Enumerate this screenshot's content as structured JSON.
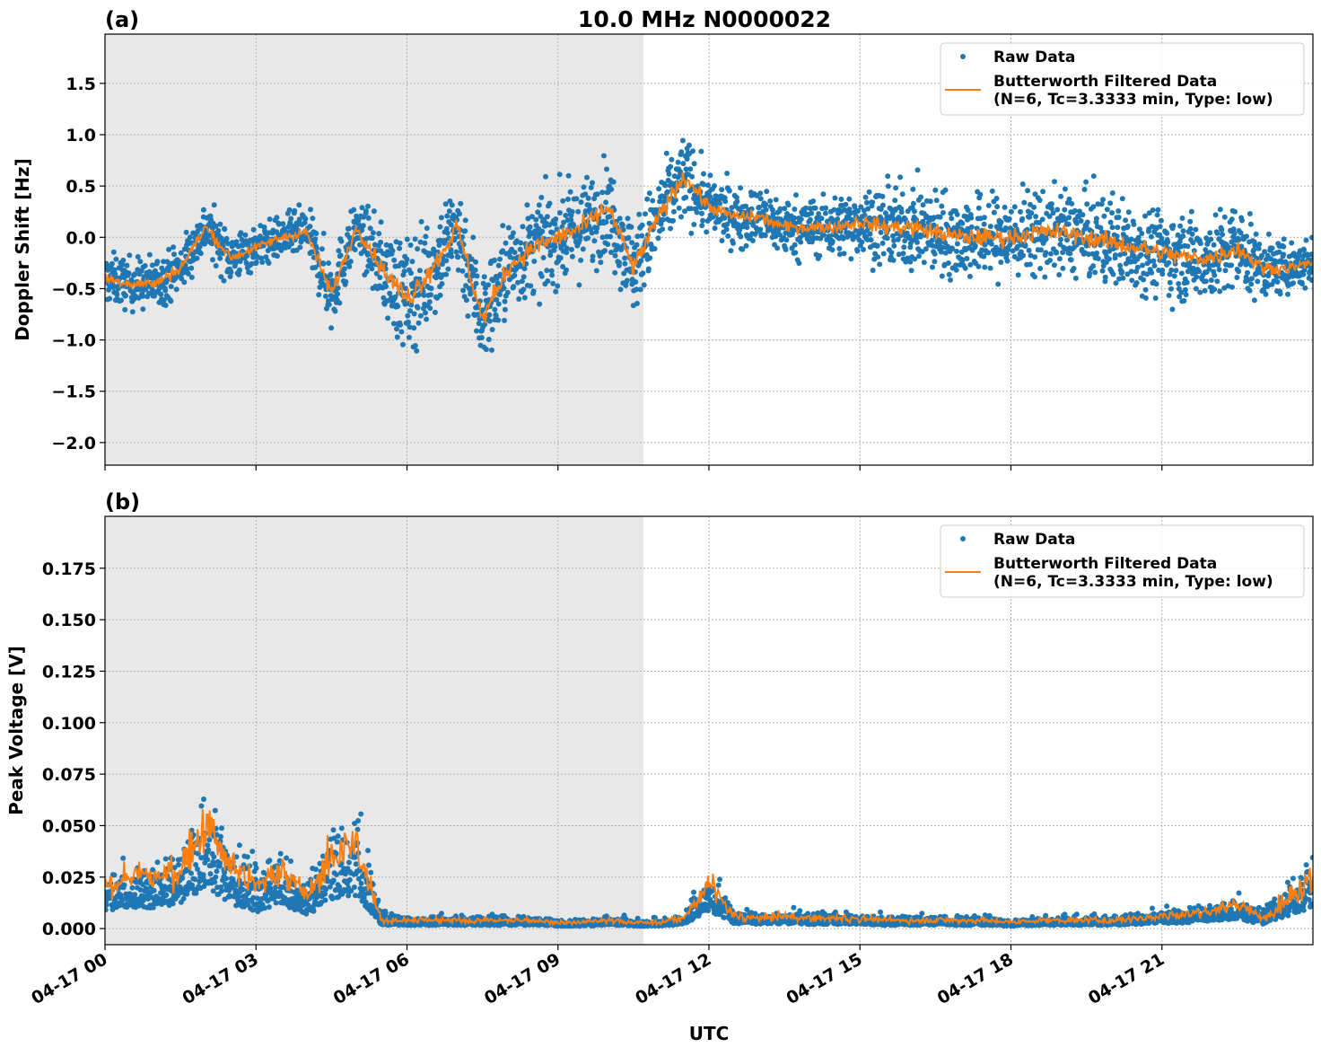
{
  "title": "10.0 MHz N0000022",
  "chart_data": [
    {
      "panel_label": "(a)",
      "type": "scatter",
      "ylabel": "Doppler Shift [Hz]",
      "xlabel": "",
      "xlim_hours": [
        0,
        24
      ],
      "ylim": [
        -2.22,
        1.98
      ],
      "yticks": [
        1.5,
        1.0,
        0.5,
        0.0,
        -0.5,
        -1.0,
        -1.5,
        -2.0
      ],
      "ytick_labels": [
        "1.5",
        "1.0",
        "0.5",
        "0.0",
        "−0.5",
        "−1.0",
        "−1.5",
        "−2.0"
      ],
      "grid": true,
      "shaded_interval_hours": [
        0,
        10.7
      ],
      "legend_placement": "top-right",
      "legend": [
        "Raw Data",
        "Butterworth Filtered Data",
        "(N=6, Tc=3.3333 min, Type: low)"
      ],
      "series_colors": {
        "raw": "#1f77b4",
        "filtered": "#ff7f0e"
      },
      "time_hours": [
        0,
        0.5,
        1,
        1.5,
        2,
        2.5,
        3,
        3.5,
        4,
        4.5,
        5,
        5.5,
        6,
        6.5,
        7,
        7.5,
        8,
        8.5,
        9,
        9.5,
        10,
        10.5,
        11,
        11.5,
        12,
        12.5,
        13,
        13.5,
        14,
        14.5,
        15,
        15.5,
        16,
        16.5,
        17,
        17.5,
        18,
        18.5,
        19,
        19.5,
        20,
        20.5,
        21,
        21.5,
        22,
        22.5,
        23,
        23.5,
        24
      ],
      "filtered": [
        -0.4,
        -0.45,
        -0.45,
        -0.3,
        0.1,
        -0.2,
        -0.1,
        0.0,
        0.05,
        -0.55,
        0.1,
        -0.3,
        -0.6,
        -0.3,
        0.1,
        -0.8,
        -0.3,
        -0.1,
        0.0,
        0.1,
        0.3,
        -0.3,
        0.2,
        0.6,
        0.3,
        0.2,
        0.2,
        0.1,
        0.1,
        0.1,
        0.15,
        0.1,
        0.1,
        0.05,
        0.0,
        0.0,
        0.0,
        0.05,
        0.05,
        0.0,
        -0.05,
        -0.1,
        -0.15,
        -0.2,
        -0.2,
        -0.1,
        -0.3,
        -0.3,
        -0.25
      ],
      "raw_spread": [
        0.3,
        0.3,
        0.3,
        0.3,
        0.3,
        0.3,
        0.25,
        0.25,
        0.3,
        0.45,
        0.3,
        0.5,
        0.7,
        0.6,
        0.6,
        0.6,
        0.55,
        0.55,
        0.55,
        0.55,
        0.55,
        0.55,
        0.5,
        0.5,
        0.35,
        0.35,
        0.35,
        0.35,
        0.35,
        0.35,
        0.4,
        0.45,
        0.5,
        0.5,
        0.5,
        0.5,
        0.5,
        0.5,
        0.5,
        0.5,
        0.55,
        0.5,
        0.5,
        0.5,
        0.5,
        0.55,
        0.35,
        0.3,
        0.3
      ]
    },
    {
      "panel_label": "(b)",
      "type": "scatter",
      "ylabel": "Peak Voltage [V]",
      "xlabel": "UTC",
      "xlim_hours": [
        0,
        24
      ],
      "ylim": [
        -0.0078,
        0.2002
      ],
      "yticks": [
        0.175,
        0.15,
        0.125,
        0.1,
        0.075,
        0.05,
        0.025,
        0.0
      ],
      "ytick_labels": [
        "0.175",
        "0.150",
        "0.125",
        "0.100",
        "0.075",
        "0.050",
        "0.025",
        "0.000"
      ],
      "xticks_hours": [
        0,
        3,
        6,
        9,
        12,
        15,
        18,
        21
      ],
      "xtick_labels": [
        "04-17 00",
        "04-17 03",
        "04-17 06",
        "04-17 09",
        "04-17 12",
        "04-17 15",
        "04-17 18",
        "04-17 21"
      ],
      "grid": true,
      "shaded_interval_hours": [
        0,
        10.7
      ],
      "legend_placement": "top-right",
      "legend": [
        "Raw Data",
        "Butterworth Filtered Data",
        "(N=6, Tc=3.3333 min, Type: low)"
      ],
      "series_colors": {
        "raw": "#1f77b4",
        "filtered": "#ff7f0e"
      },
      "time_hours": [
        0,
        0.5,
        1,
        1.5,
        2,
        2.5,
        3,
        3.5,
        4,
        4.5,
        5,
        5.5,
        6,
        6.5,
        7,
        7.5,
        8,
        8.5,
        9,
        9.5,
        10,
        10.5,
        11,
        11.5,
        12,
        12.5,
        13,
        13.5,
        14,
        14.5,
        15,
        15.5,
        16,
        16.5,
        17,
        17.5,
        18,
        18.5,
        19,
        19.5,
        20,
        20.5,
        21,
        21.5,
        22,
        22.5,
        23,
        23.5,
        24
      ],
      "filtered": [
        0.02,
        0.025,
        0.025,
        0.03,
        0.05,
        0.03,
        0.02,
        0.03,
        0.015,
        0.035,
        0.04,
        0.004,
        0.004,
        0.004,
        0.004,
        0.004,
        0.004,
        0.004,
        0.003,
        0.003,
        0.004,
        0.003,
        0.003,
        0.005,
        0.022,
        0.006,
        0.005,
        0.006,
        0.005,
        0.005,
        0.005,
        0.004,
        0.004,
        0.004,
        0.004,
        0.004,
        0.003,
        0.004,
        0.004,
        0.004,
        0.004,
        0.005,
        0.006,
        0.007,
        0.009,
        0.012,
        0.005,
        0.015,
        0.025
      ],
      "raw_spread": [
        0.015,
        0.018,
        0.02,
        0.025,
        0.04,
        0.025,
        0.02,
        0.025,
        0.015,
        0.03,
        0.035,
        0.006,
        0.004,
        0.004,
        0.004,
        0.004,
        0.004,
        0.004,
        0.003,
        0.003,
        0.004,
        0.003,
        0.003,
        0.004,
        0.018,
        0.006,
        0.005,
        0.006,
        0.005,
        0.005,
        0.005,
        0.004,
        0.004,
        0.004,
        0.004,
        0.004,
        0.003,
        0.004,
        0.004,
        0.004,
        0.004,
        0.005,
        0.006,
        0.007,
        0.008,
        0.01,
        0.006,
        0.015,
        0.025
      ]
    }
  ]
}
